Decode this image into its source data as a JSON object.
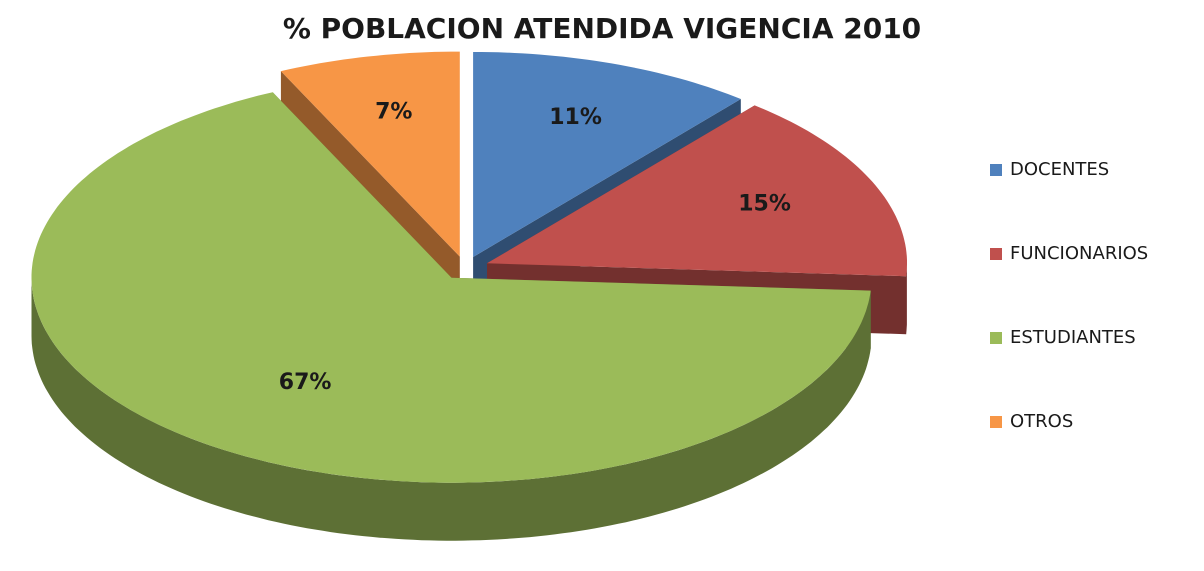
{
  "chart_data": {
    "type": "pie",
    "title": "% POBLACION ATENDIDA VIGENCIA 2010",
    "categories": [
      "DOCENTES",
      "FUNCIONARIOS",
      "ESTUDIANTES",
      "OTROS"
    ],
    "values": [
      11,
      15,
      67,
      7
    ],
    "value_labels": [
      "11%",
      "15%",
      "67%",
      "7%"
    ],
    "colors": [
      "#4f81bd",
      "#c0504d",
      "#9bbb59",
      "#f79646"
    ],
    "legend": "right"
  }
}
